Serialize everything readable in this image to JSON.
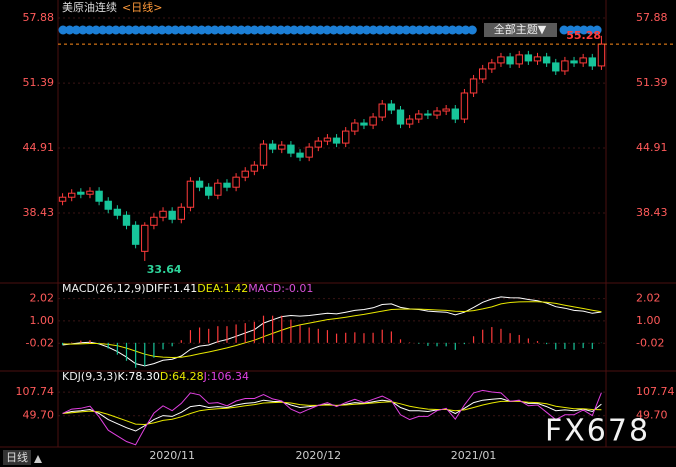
{
  "chart_data": {
    "type": "candlestick",
    "title": "美原油连续",
    "period_label": "<日线>",
    "theme_button": "全部主题▼",
    "period_button": "日线",
    "watermark": "FX678",
    "up_color": "#ff3b3b",
    "down_color": "#17c59a",
    "last_color": "#ff8c1a",
    "categories": [
      null,
      null,
      null,
      null,
      null,
      null,
      null,
      null,
      null,
      null,
      null,
      null,
      "2020/11",
      null,
      null,
      null,
      null,
      null,
      null,
      null,
      null,
      null,
      null,
      null,
      null,
      null,
      null,
      null,
      "2020/12",
      null,
      null,
      null,
      null,
      null,
      null,
      null,
      null,
      null,
      null,
      null,
      null,
      null,
      null,
      null,
      null,
      "2021/01",
      null,
      null,
      null,
      null,
      null,
      null,
      null,
      null,
      null,
      null,
      null,
      null,
      null,
      null
    ],
    "open": [
      39.6,
      40.0,
      40.5,
      40.3,
      40.6,
      39.6,
      38.8,
      38.2,
      37.2,
      34.6,
      37.2,
      38.0,
      38.6,
      37.8,
      39.0,
      41.6,
      41.0,
      40.2,
      41.4,
      41.0,
      42.0,
      42.6,
      43.2,
      45.3,
      44.8,
      45.2,
      44.4,
      44.0,
      45.0,
      45.6,
      45.9,
      45.4,
      46.6,
      47.4,
      47.2,
      48.0,
      49.3,
      48.7,
      47.3,
      47.8,
      48.3,
      48.2,
      48.6,
      48.8,
      47.8,
      50.4,
      51.8,
      52.8,
      53.4,
      54.0,
      53.3,
      54.2,
      53.6,
      54.0,
      53.4,
      52.6,
      53.6,
      53.4,
      53.9,
      53.1
    ],
    "high": [
      40.4,
      40.8,
      40.9,
      41.0,
      41.0,
      40.0,
      39.2,
      38.6,
      37.6,
      37.5,
      38.4,
      39.0,
      39.0,
      39.4,
      42.0,
      42.0,
      41.4,
      41.8,
      41.8,
      42.4,
      43.0,
      43.6,
      45.7,
      45.7,
      45.6,
      45.6,
      44.8,
      45.4,
      46.0,
      46.3,
      46.3,
      47.0,
      47.8,
      47.8,
      48.4,
      49.7,
      49.7,
      49.1,
      48.2,
      48.7,
      48.7,
      49.0,
      49.2,
      49.2,
      50.8,
      52.2,
      53.2,
      53.8,
      54.4,
      54.4,
      54.6,
      54.6,
      54.4,
      54.4,
      53.8,
      54.0,
      54.0,
      54.3,
      54.3,
      56.1
    ],
    "low": [
      39.2,
      39.6,
      39.9,
      39.9,
      39.2,
      38.4,
      37.8,
      36.8,
      34.9,
      33.64,
      36.8,
      37.6,
      37.4,
      37.4,
      38.6,
      40.6,
      39.8,
      39.8,
      40.6,
      40.6,
      41.6,
      42.2,
      42.8,
      44.4,
      44.4,
      44.0,
      43.6,
      43.6,
      44.6,
      45.2,
      45.0,
      45.0,
      46.2,
      46.8,
      46.8,
      47.6,
      48.3,
      46.9,
      46.9,
      47.4,
      47.8,
      47.8,
      48.2,
      47.4,
      47.4,
      50.0,
      51.4,
      52.4,
      53.0,
      52.9,
      52.9,
      53.2,
      53.2,
      53.0,
      52.2,
      52.2,
      53.0,
      53.0,
      52.7,
      52.7
    ],
    "close": [
      40.0,
      40.4,
      40.3,
      40.6,
      39.6,
      38.8,
      38.2,
      37.2,
      35.3,
      37.2,
      38.0,
      38.6,
      37.8,
      39.0,
      41.6,
      41.0,
      40.2,
      41.4,
      41.0,
      42.0,
      42.6,
      43.2,
      45.3,
      44.8,
      45.2,
      44.4,
      44.0,
      45.0,
      45.6,
      45.9,
      45.4,
      46.6,
      47.4,
      47.2,
      48.0,
      49.3,
      48.7,
      47.3,
      47.8,
      48.3,
      48.2,
      48.6,
      48.8,
      47.8,
      50.4,
      51.8,
      52.8,
      53.4,
      54.0,
      53.3,
      54.2,
      53.6,
      54.0,
      53.4,
      52.6,
      53.6,
      53.4,
      53.9,
      53.1,
      55.28
    ],
    "ylim": [
      31.74,
      58.88
    ],
    "yticks": [
      57.88,
      51.39,
      44.91,
      38.43
    ],
    "indicators": [
      {
        "title": "MACD(26,12,9)",
        "ylim": [
          -1.15,
          2.55
        ],
        "yticks": [
          2.02,
          {
            "value": 1,
            "label": "1.00"
          },
          -0.02
        ],
        "series": [
          {
            "name": "DIFF:",
            "color": "#ffffff",
            "values": [
              -0.1,
              -0.05,
              0.0,
              0.03,
              -0.05,
              -0.2,
              -0.4,
              -0.65,
              -0.95,
              -1.05,
              -0.95,
              -0.8,
              -0.75,
              -0.6,
              -0.3,
              -0.15,
              -0.1,
              0.05,
              0.15,
              0.3,
              0.45,
              0.6,
              0.9,
              1.05,
              1.2,
              1.25,
              1.22,
              1.25,
              1.3,
              1.35,
              1.32,
              1.4,
              1.48,
              1.52,
              1.6,
              1.75,
              1.78,
              1.62,
              1.55,
              1.52,
              1.45,
              1.42,
              1.4,
              1.28,
              1.4,
              1.62,
              1.85,
              2.0,
              2.1,
              2.06,
              2.05,
              1.98,
              1.92,
              1.82,
              1.65,
              1.58,
              1.48,
              1.45,
              1.35,
              1.41
            ]
          },
          {
            "name": "DEA:",
            "color": "#e8e800",
            "values": [
              -0.05,
              -0.06,
              -0.05,
              -0.03,
              -0.03,
              -0.07,
              -0.13,
              -0.24,
              -0.38,
              -0.52,
              -0.61,
              -0.65,
              -0.67,
              -0.66,
              -0.59,
              -0.5,
              -0.42,
              -0.33,
              -0.23,
              -0.12,
              0.0,
              0.12,
              0.28,
              0.43,
              0.58,
              0.72,
              0.82,
              0.9,
              0.98,
              1.06,
              1.11,
              1.17,
              1.24,
              1.3,
              1.37,
              1.45,
              1.52,
              1.54,
              1.54,
              1.54,
              1.52,
              1.5,
              1.48,
              1.44,
              1.43,
              1.47,
              1.55,
              1.64,
              1.78,
              1.84,
              1.87,
              1.88,
              1.88,
              1.85,
              1.8,
              1.72,
              1.64,
              1.57,
              1.49,
              1.42
            ]
          },
          {
            "name": "MACD:",
            "color": "#d64fd6",
            "type": "histogram",
            "up_color": "#ff3b3b",
            "down_color": "#17c59a",
            "values": [
              -0.1,
              0.02,
              0.1,
              0.12,
              -0.04,
              -0.26,
              -0.54,
              -0.82,
              -1.14,
              -1.06,
              -0.68,
              -0.3,
              -0.16,
              0.12,
              0.58,
              0.7,
              0.64,
              0.76,
              0.76,
              0.84,
              0.9,
              0.96,
              1.24,
              1.24,
              1.24,
              1.06,
              0.8,
              0.7,
              0.64,
              0.58,
              0.42,
              0.46,
              0.48,
              0.44,
              0.46,
              0.6,
              0.52,
              0.16,
              0.02,
              -0.04,
              -0.14,
              -0.16,
              -0.16,
              -0.32,
              -0.06,
              0.3,
              0.6,
              0.72,
              0.64,
              0.44,
              0.36,
              0.2,
              0.08,
              -0.06,
              -0.3,
              -0.28,
              -0.32,
              -0.24,
              -0.28,
              -0.01
            ]
          }
        ]
      },
      {
        "title": "KDJ(9,3,3)",
        "ylim": [
          -25,
          150
        ],
        "yticks": [
          107.74,
          {
            "value": 49.7,
            "label": "49.70"
          }
        ],
        "series": [
          {
            "name": "K:",
            "color": "#ffffff",
            "values": [
              55,
              60,
              62,
              65,
              55,
              40,
              30,
              20,
              12,
              25,
              40,
              50,
              48,
              58,
              72,
              75,
              70,
              72,
              70,
              76,
              80,
              82,
              88,
              85,
              84,
              76,
              70,
              72,
              75,
              78,
              74,
              78,
              82,
              80,
              84,
              88,
              85,
              70,
              62,
              62,
              60,
              64,
              66,
              55,
              68,
              82,
              88,
              90,
              92,
              85,
              86,
              80,
              80,
              72,
              62,
              64,
              62,
              66,
              60,
              78.3
            ],
            "value_labels": [
              null,
              null,
              null,
              null,
              null,
              null,
              null,
              null,
              null,
              null,
              null,
              null,
              null,
              null,
              null,
              null,
              null,
              null,
              null,
              null,
              null,
              null,
              null,
              null,
              null,
              null,
              null,
              null,
              null,
              null,
              null,
              null,
              null,
              null,
              null,
              null,
              null,
              null,
              null,
              null,
              null,
              null,
              null,
              null,
              null,
              null,
              null,
              null,
              null,
              null,
              null,
              null,
              null,
              null,
              null,
              null,
              null,
              null,
              null,
              "78.30"
            ]
          },
          {
            "name": "D:",
            "color": "#e8e800",
            "values": [
              55,
              57,
              59,
              61,
              59,
              53,
              45,
              37,
              29,
              28,
              32,
              38,
              41,
              47,
              55,
              62,
              65,
              67,
              68,
              71,
              74,
              77,
              81,
              82,
              83,
              81,
              77,
              75,
              75,
              76,
              75,
              76,
              78,
              79,
              81,
              83,
              84,
              79,
              73,
              69,
              66,
              65,
              65,
              62,
              64,
              70,
              76,
              81,
              85,
              85,
              85,
              83,
              82,
              79,
              73,
              70,
              67,
              67,
              65,
              64.28
            ]
          },
          {
            "name": "J:",
            "color": "#e040e0",
            "values": [
              55,
              66,
              68,
              73,
              47,
              14,
              0,
              -14,
              -22,
              19,
              56,
              74,
              62,
              80,
              106,
              101,
              80,
              82,
              74,
              86,
              92,
              92,
              102,
              91,
              86,
              66,
              56,
              66,
              75,
              82,
              72,
              82,
              90,
              82,
              90,
              98,
              87,
              52,
              40,
              48,
              48,
              62,
              68,
              41,
              76,
              106,
              112,
              108,
              106,
              85,
              88,
              74,
              76,
              58,
              40,
              52,
              52,
              64,
              50,
              106.34
            ]
          }
        ]
      }
    ]
  }
}
